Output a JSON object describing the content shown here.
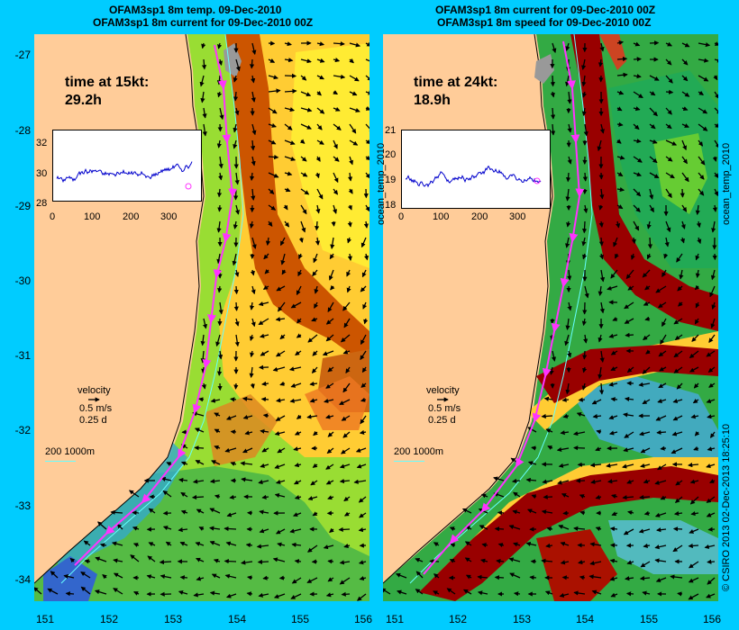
{
  "left": {
    "title1": "OFAM3sp1 8m temp. 09-Dec-2010",
    "title2": "OFAM3sp1 8m current for 09-Dec-2010 00Z",
    "time_label": "time at 15kt:",
    "time_value": "29.2h",
    "inset": {
      "y_ticks": [
        "32",
        "30",
        "28"
      ],
      "x_ticks": [
        "0",
        "100",
        "200",
        "300"
      ],
      "y_range": [
        28,
        32
      ],
      "x_range": [
        0,
        360
      ]
    },
    "legend": {
      "title": "velocity",
      "speed": "0.5 m/s",
      "duration": "0.25 d"
    },
    "scale": "200  1000m"
  },
  "right": {
    "title1": "OFAM3sp1 8m current for 09-Dec-2010 00Z",
    "title2": "OFAM3sp1 8m speed for 09-Dec-2010 00Z",
    "time_label": "time at 24kt:",
    "time_value": "18.9h",
    "inset": {
      "y_ticks": [
        "21",
        "20",
        "19",
        "18"
      ],
      "x_ticks": [
        "0",
        "100",
        "200",
        "300"
      ],
      "y_range": [
        18,
        21
      ],
      "x_range": [
        0,
        360
      ]
    },
    "inset_ylabel": "ocean_temp_2010",
    "legend": {
      "title": "velocity",
      "speed": "0.5 m/s",
      "duration": "0.25 d"
    },
    "scale": "200  1000m",
    "side_label": "ocean_temp_2010"
  },
  "axes": {
    "lat_ticks": [
      "-27",
      "-28",
      "-29",
      "-30",
      "-31",
      "-32",
      "-33",
      "-34"
    ],
    "lon_ticks": [
      "151",
      "152",
      "153",
      "154",
      "155",
      "156"
    ],
    "lat_range": [
      -34.4,
      -26.85
    ],
    "lon_range": [
      151,
      156
    ]
  },
  "credit": "© CSIRO 2013  02-Dec-2013 18:25:10",
  "colors": {
    "frame": "#00ccff",
    "land": "#ffcc99",
    "track": "#ff33ff",
    "isobath": "#66ffff"
  }
}
